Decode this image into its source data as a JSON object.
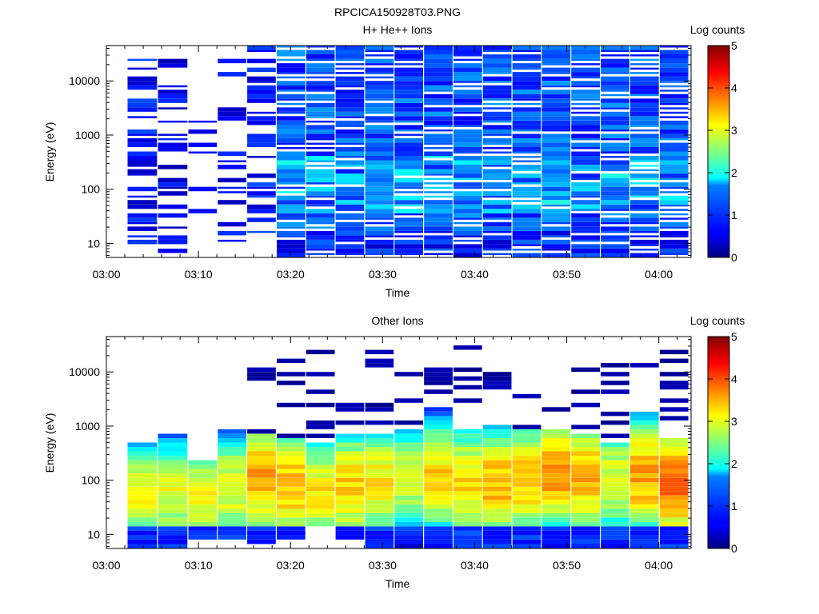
{
  "figure_title": "RPCICA150928T03.PNG",
  "chart_data": [
    {
      "type": "heatmap",
      "title": "H+ He++ Ions",
      "xlabel": "Time",
      "ylabel": "Energy (eV)",
      "xticks": [
        "03:00",
        "03:10",
        "03:20",
        "03:30",
        "03:40",
        "03:50",
        "04:00"
      ],
      "xlim_minutes": [
        0,
        63.5
      ],
      "yscale": "log",
      "ylim": [
        5.5,
        45000
      ],
      "yticks": [
        "10",
        "100",
        "1000",
        "10000"
      ],
      "colorbar": {
        "label": "Log counts",
        "min": 0,
        "max": 5,
        "ticks": [
          "0",
          "1",
          "2",
          "3",
          "4",
          "5"
        ]
      },
      "colormap": "jet",
      "seed": 17,
      "columns": [
        {
          "t0": 2.3,
          "t1": 5.5,
          "emin": 10,
          "emax": 38000,
          "level": 0.55,
          "spread": 0.35,
          "fill": 0.55
        },
        {
          "t0": 5.6,
          "t1": 8.8,
          "emin": 7.5,
          "emax": 26000,
          "level": 0.45,
          "spread": 0.3,
          "fill": 0.38
        },
        {
          "t0": 8.9,
          "t1": 12.0,
          "emin": 35,
          "emax": 2100,
          "level": 0.35,
          "spread": 0.25,
          "fill": 0.28
        },
        {
          "t0": 12.1,
          "t1": 15.2,
          "emin": 7.5,
          "emax": 26000,
          "level": 0.5,
          "spread": 0.3,
          "fill": 0.35
        },
        {
          "t0": 15.3,
          "t1": 18.4,
          "emin": 15,
          "emax": 42000,
          "level": 0.6,
          "spread": 0.35,
          "fill": 0.62
        },
        {
          "t0": 18.5,
          "t1": 63.2,
          "emin": 5.5,
          "emax": 42000,
          "level": 0.9,
          "spread": 0.4,
          "fill": 1.0,
          "width": 3.2
        }
      ]
    },
    {
      "type": "heatmap",
      "title": "Other Ions",
      "xlabel": "Time",
      "ylabel": "Energy (eV)",
      "xticks": [
        "03:00",
        "03:10",
        "03:20",
        "03:30",
        "03:40",
        "03:50",
        "04:00"
      ],
      "xlim_minutes": [
        0,
        63.5
      ],
      "yscale": "log",
      "ylim": [
        5.5,
        45000
      ],
      "yticks": [
        "10",
        "100",
        "1000",
        "10000"
      ],
      "colorbar": {
        "label": "Log counts",
        "min": 0,
        "max": 5,
        "ticks": [
          "0",
          "1",
          "2",
          "3",
          "4",
          "5"
        ]
      },
      "colormap": "jet",
      "seed": 91,
      "columns": [
        {
          "t0": 2.3,
          "t1": 5.5,
          "ecut": 500,
          "peak": 3.05,
          "peak_e": 55,
          "emin": 5.5
        },
        {
          "t0": 5.6,
          "t1": 8.8,
          "ecut": 720,
          "peak": 3.0,
          "peak_e": 60,
          "emin": 5.5
        },
        {
          "t0": 8.9,
          "t1": 12.0,
          "ecut": 230,
          "peak": 3.1,
          "peak_e": 50,
          "emin": 8
        },
        {
          "t0": 12.1,
          "t1": 15.2,
          "ecut": 900,
          "peak": 3.05,
          "peak_e": 70,
          "emin": 8
        },
        {
          "t0": 15.3,
          "t1": 18.4,
          "ecut": 700,
          "peak": 3.55,
          "peak_e": 110,
          "emin": 6.5,
          "sparse": 12000
        },
        {
          "t0": 18.5,
          "t1": 21.6,
          "ecut": 650,
          "peak": 3.45,
          "peak_e": 80,
          "emin": 8,
          "sparse": 28000
        },
        {
          "t0": 21.7,
          "t1": 24.8,
          "ecut": 500,
          "peak": 3.2,
          "peak_e": 60,
          "emin": 12,
          "sparse": 25000
        },
        {
          "t0": 24.9,
          "t1": 28.0,
          "ecut": 720,
          "peak": 3.35,
          "peak_e": 80,
          "emin": 7.5,
          "sparse": 8000
        },
        {
          "t0": 28.1,
          "t1": 31.2,
          "ecut": 800,
          "peak": 3.2,
          "peak_e": 90,
          "emin": 5.5,
          "sparse": 36000
        },
        {
          "t0": 31.3,
          "t1": 34.4,
          "ecut": 900,
          "peak": 2.9,
          "peak_e": 110,
          "emin": 5.5,
          "sparse": 12000
        },
        {
          "t0": 34.5,
          "t1": 37.6,
          "ecut": 2500,
          "peak": 3.3,
          "peak_e": 120,
          "emin": 5.5,
          "sparse": 33000
        },
        {
          "t0": 37.7,
          "t1": 40.8,
          "ecut": 1000,
          "peak": 3.3,
          "peak_e": 90,
          "emin": 5.5,
          "sparse": 27000
        },
        {
          "t0": 40.9,
          "t1": 44.0,
          "ecut": 1100,
          "peak": 3.5,
          "peak_e": 85,
          "emin": 5.5,
          "sparse": 32000
        },
        {
          "t0": 44.1,
          "t1": 47.2,
          "ecut": 1000,
          "peak": 3.45,
          "peak_e": 100,
          "emin": 5.5,
          "sparse": 17000
        },
        {
          "t0": 47.3,
          "t1": 50.4,
          "ecut": 950,
          "peak": 3.7,
          "peak_e": 140,
          "emin": 5.5,
          "sparse": 20000
        },
        {
          "t0": 50.5,
          "t1": 53.6,
          "ecut": 800,
          "peak": 3.55,
          "peak_e": 120,
          "emin": 5.5,
          "sparse": 12000
        },
        {
          "t0": 53.7,
          "t1": 56.8,
          "ecut": 550,
          "peak": 3.0,
          "peak_e": 100,
          "emin": 5.5,
          "sparse": 16000
        },
        {
          "t0": 56.9,
          "t1": 60.0,
          "ecut": 2000,
          "peak": 3.6,
          "peak_e": 120,
          "emin": 5.5,
          "sparse": 14000
        },
        {
          "t0": 60.1,
          "t1": 63.2,
          "ecut": 620,
          "peak": 3.85,
          "peak_e": 90,
          "emin": 5.5,
          "sparse": 25000
        }
      ]
    }
  ]
}
